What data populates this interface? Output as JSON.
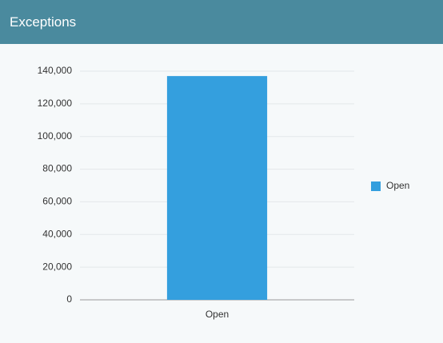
{
  "header": {
    "title": "Exceptions"
  },
  "chart_data": {
    "type": "bar",
    "categories": [
      "Open"
    ],
    "series": [
      {
        "name": "Open",
        "color": "#349fde",
        "values": [
          137000
        ]
      }
    ],
    "ylim": [
      0,
      140000
    ],
    "yticks": [
      0,
      {
        "value": 20000,
        "label": "20,000"
      },
      {
        "value": 40000,
        "label": "40,000"
      },
      {
        "value": 60000,
        "label": "60,000"
      },
      {
        "value": 80000,
        "label": "80,000"
      },
      {
        "value": 100000,
        "label": "100,000"
      },
      {
        "value": 120000,
        "label": "120,000"
      },
      {
        "value": 140000,
        "label": "140,000"
      }
    ],
    "grid": true,
    "legend": "right"
  }
}
